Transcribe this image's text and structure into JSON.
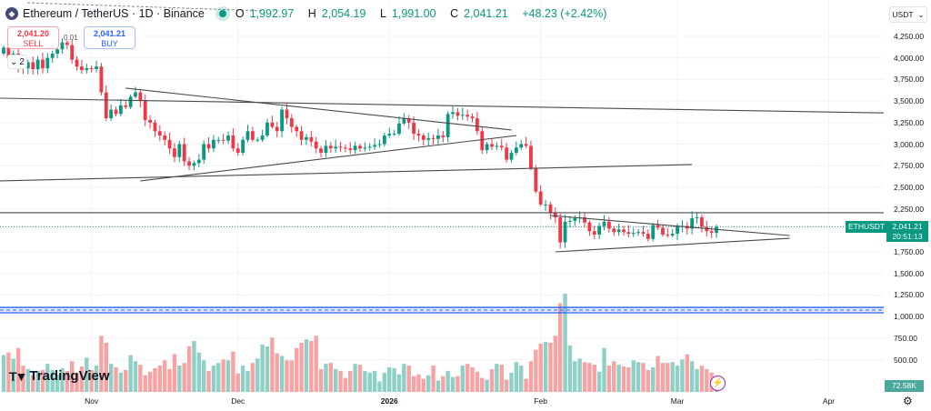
{
  "header": {
    "symbol_title": "Ethereum / TetherUS · 1D · Binance",
    "ohlc": [
      {
        "key": "O",
        "value": "1,992.97"
      },
      {
        "key": "H",
        "value": "2,054.19"
      },
      {
        "key": "L",
        "value": "1,991.00"
      },
      {
        "key": "C",
        "value": "2,041.21"
      }
    ],
    "change": "+48.23 (+2.42%)"
  },
  "trade": {
    "sell_price": "2,041.20",
    "sell_label": "SELL",
    "buy_price": "2,041.21",
    "buy_label": "BUY",
    "spread": "0.01",
    "collapse_count": "2"
  },
  "price_axis": {
    "currency": "USDT",
    "ticks": [
      "4,250.00",
      "4,000.00",
      "3,750.00",
      "3,500.00",
      "3,250.00",
      "3,000.00",
      "2,750.00",
      "2,500.00",
      "2,250.00",
      "1,750.00",
      "1,500.00",
      "1,250.00",
      "1,000.00",
      "750.00",
      "500.00"
    ],
    "symbol_tag": "ETHUSDT",
    "last_price": "2,041.21",
    "countdown": "20:51:13",
    "volume_last": "72.58K"
  },
  "time_axis": {
    "labels": [
      {
        "text": "Nov",
        "date": "2025-11-01",
        "bold": false
      },
      {
        "text": "Dec",
        "date": "2025-12-01",
        "bold": false
      },
      {
        "text": "2026",
        "date": "2026-01-01",
        "bold": true
      },
      {
        "text": "Feb",
        "date": "2026-02-01",
        "bold": false
      },
      {
        "text": "Mar",
        "date": "2026-03-01",
        "bold": false
      },
      {
        "text": "Apr",
        "date": "2026-04-01",
        "bold": false
      }
    ]
  },
  "branding": {
    "logo": "TradingView"
  },
  "colors": {
    "up": "#089981",
    "down": "#f23645",
    "vol_up": "#8fd0c6",
    "vol_down": "#f7a3a3",
    "drawing": "#4a4a4a",
    "zone": "#2962ff"
  },
  "chart_data": {
    "type": "candlestick",
    "first_date": "2025-10-14",
    "interval": "1D",
    "ylim": [
      450,
      4350
    ],
    "grid": true,
    "closes": [
      4120,
      4000,
      4050,
      3900,
      3880,
      3950,
      3870,
      3980,
      3880,
      4000,
      4050,
      4100,
      4180,
      4150,
      3980,
      3900,
      3860,
      3880,
      3870,
      3900,
      3600,
      3300,
      3400,
      3350,
      3450,
      3430,
      3550,
      3600,
      3500,
      3280,
      3250,
      3150,
      3100,
      3050,
      2950,
      2850,
      3000,
      2800,
      2750,
      2780,
      2820,
      3000,
      2950,
      3050,
      3050,
      3040,
      3100,
      2950,
      2900,
      3050,
      3150,
      3050,
      3050,
      3100,
      3250,
      3200,
      3150,
      3400,
      3300,
      3200,
      3150,
      3050,
      3080,
      3030,
      2950,
      2900,
      2980,
      2950,
      2970,
      2960,
      2950,
      2930,
      2980,
      2950,
      2960,
      2970,
      2990,
      3000,
      3100,
      3120,
      3120,
      3240,
      3300,
      3250,
      3120,
      3100,
      3050,
      3070,
      3060,
      3100,
      3080,
      3350,
      3370,
      3330,
      3340,
      3320,
      3300,
      3150,
      2930,
      3000,
      2970,
      2980,
      2960,
      2820,
      2900,
      2960,
      3000,
      2980,
      2720,
      2450,
      2300,
      2300,
      2200,
      2150,
      1860,
      2100,
      2110,
      2140,
      2150,
      2090,
      1990,
      1950,
      2050,
      2100,
      2020,
      1980,
      2010,
      1980,
      1960,
      1970,
      1980,
      1960,
      1900,
      2060,
      2030,
      1950,
      1940,
      1960,
      2050,
      2050,
      2020,
      2140,
      2150,
      2040,
      1990,
      1970,
      2041
    ],
    "first_open": 4050,
    "volume_k": [
      420,
      450,
      380,
      500,
      300,
      260,
      190,
      240,
      250,
      320,
      250,
      200,
      270,
      240,
      350,
      210,
      290,
      390,
      250,
      300,
      640,
      560,
      320,
      280,
      220,
      250,
      420,
      350,
      310,
      190,
      230,
      270,
      300,
      360,
      260,
      430,
      300,
      330,
      520,
      580,
      450,
      360,
      240,
      300,
      330,
      370,
      360,
      460,
      210,
      300,
      240,
      330,
      380,
      540,
      520,
      620,
      440,
      410,
      360,
      360,
      500,
      560,
      600,
      580,
      640,
      260,
      320,
      330,
      260,
      240,
      160,
      240,
      320,
      310,
      240,
      220,
      240,
      120,
      220,
      280,
      270,
      200,
      320,
      300,
      180,
      200,
      150,
      190,
      300,
      130,
      180,
      240,
      170,
      180,
      300,
      320,
      280,
      230,
      160,
      140,
      260,
      320,
      310,
      140,
      220,
      340,
      300,
      150,
      350,
      480,
      550,
      570,
      560,
      640,
      1010,
      1120,
      530,
      350,
      380,
      340,
      330,
      310,
      230,
      500,
      300,
      350,
      310,
      290,
      280,
      360,
      340,
      330,
      250,
      280,
      410,
      330,
      330,
      340,
      300,
      370,
      430,
      350,
      260,
      300,
      260,
      220,
      73
    ],
    "drawings": [
      {
        "name": "long-resistance-line",
        "from": {
          "date": "2025-10-13",
          "price": 3533
        },
        "to": {
          "date": "2026-04-22",
          "price": 3353
        }
      },
      {
        "name": "triangle-upper-line",
        "from": {
          "date": "2025-11-08",
          "price": 3649
        },
        "to": {
          "date": "2026-01-26",
          "price": 3164
        }
      },
      {
        "name": "triangle-lower-line",
        "from": {
          "date": "2025-11-11",
          "price": 2573
        },
        "to": {
          "date": "2026-01-27",
          "price": 3100
        }
      },
      {
        "name": "long-support-line",
        "from": {
          "date": "2025-10-13",
          "price": 2573
        },
        "to": {
          "date": "2026-03-04",
          "price": 2763
        }
      },
      {
        "name": "horizontal-level-line",
        "from": {
          "date": "2025-10-13",
          "price": 2204
        },
        "to": {
          "date": "2026-04-22",
          "price": 2204
        }
      },
      {
        "name": "wedge-upper-line",
        "from": {
          "date": "2026-02-03",
          "price": 2172
        },
        "to": {
          "date": "2026-03-24",
          "price": 1940
        }
      },
      {
        "name": "wedge-lower-line",
        "from": {
          "date": "2026-02-04",
          "price": 1750
        },
        "to": {
          "date": "2026-03-24",
          "price": 1908
        }
      }
    ],
    "zone": {
      "top": 1106,
      "bottom": 1043
    },
    "last_price": 2041.21
  }
}
